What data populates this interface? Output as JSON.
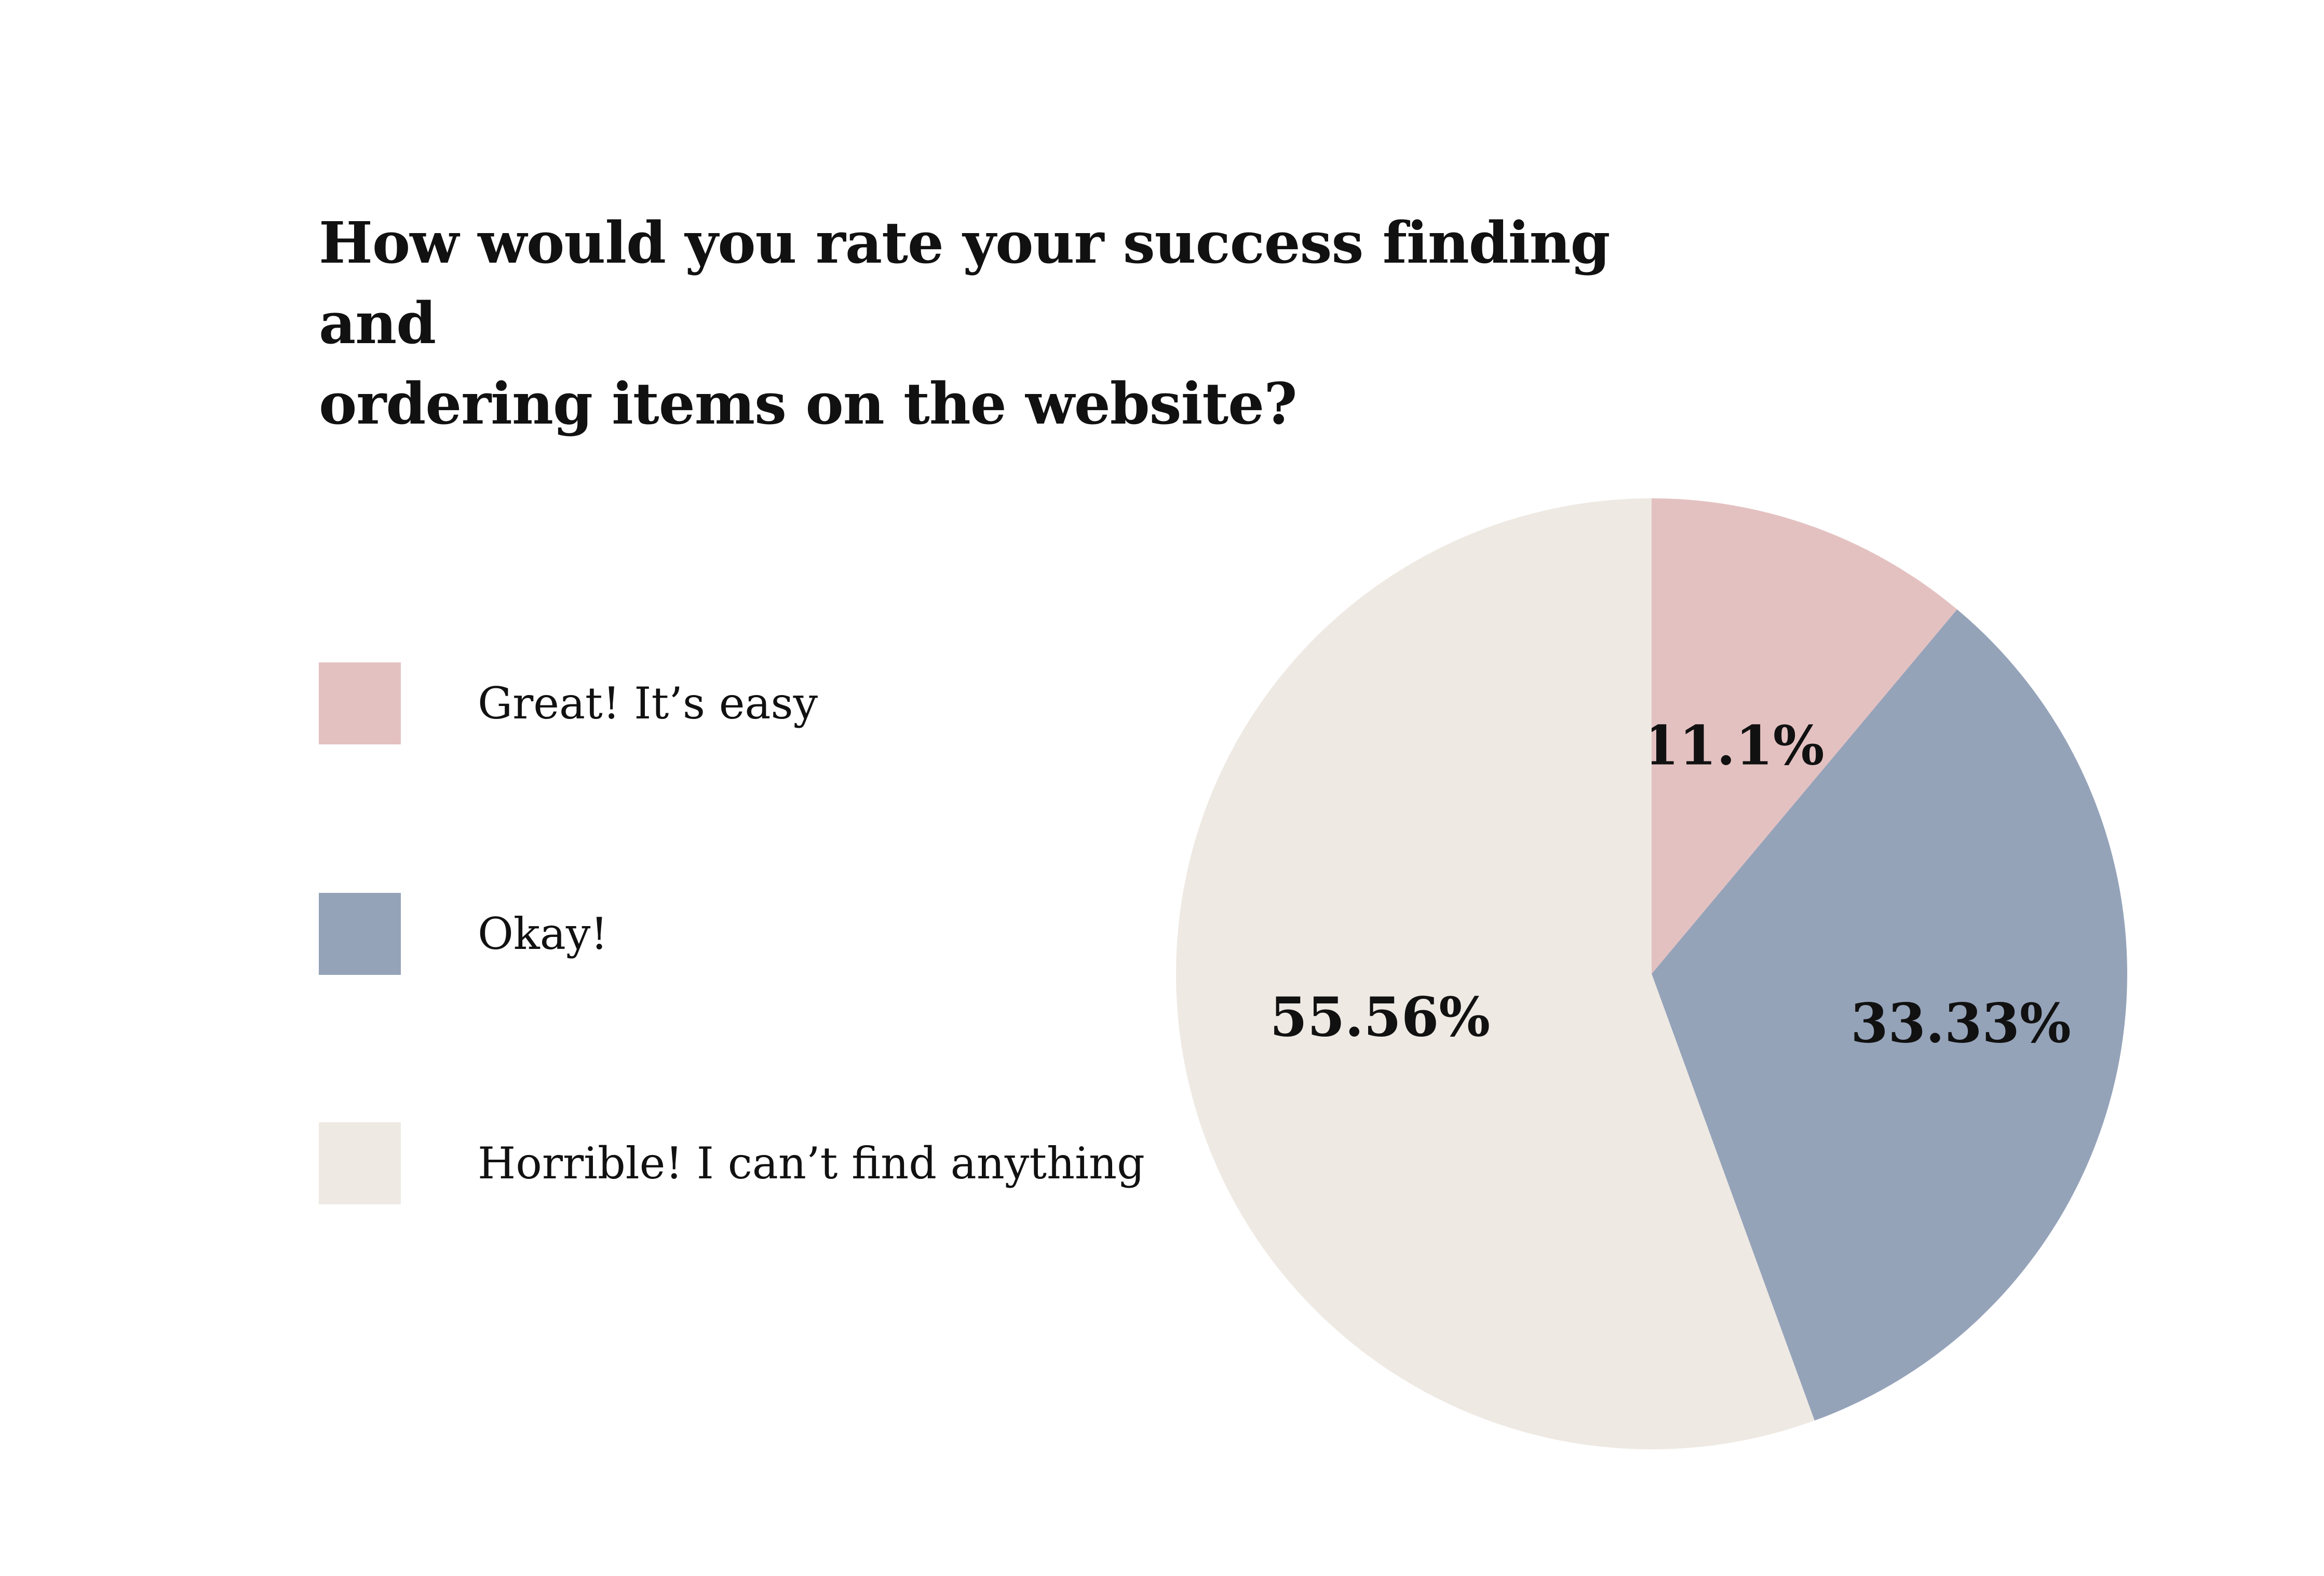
{
  "chart_data": {
    "type": "pie",
    "title": "How would you rate your success finding and\nordering items on the website?",
    "legend_position": "left",
    "categories": [
      "Great! It’s easy",
      "Okay!",
      "Horrible! I can’t find anything"
    ],
    "values": [
      11.1,
      33.33,
      55.56
    ],
    "data_labels": [
      "11.1%",
      "33.33%",
      "55.56%"
    ],
    "colors": [
      "#e4c1c1",
      "#95a3b9",
      "#eee9e3"
    ],
    "start_angle_deg": 0,
    "direction": "clockwise"
  }
}
